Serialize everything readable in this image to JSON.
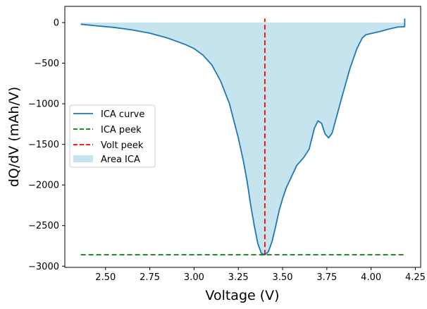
{
  "chart_data": {
    "type": "line",
    "xlabel": "Voltage (V)",
    "ylabel": "dQ/dV (mAh/V)",
    "xlim": [
      2.27,
      4.28
    ],
    "ylim": [
      -3015,
      200
    ],
    "x_ticks": [
      2.5,
      2.75,
      3.0,
      3.25,
      3.5,
      3.75,
      4.0,
      4.25
    ],
    "x_tick_labels": [
      "2.50",
      "2.75",
      "3.00",
      "3.25",
      "3.50",
      "3.75",
      "4.00",
      "4.25"
    ],
    "y_ticks": [
      0,
      -500,
      -1000,
      -1500,
      -2000,
      -2500,
      -3000
    ],
    "y_tick_labels": [
      "0",
      "−500",
      "−1000",
      "−1500",
      "−2000",
      "−2500",
      "−3000"
    ],
    "grid": false,
    "legend_position": "center-left",
    "series": [
      {
        "name": "ICA curve",
        "style": "solid",
        "color": "#1f77b4",
        "x": [
          2.36,
          2.45,
          2.55,
          2.65,
          2.75,
          2.85,
          2.95,
          3.0,
          3.05,
          3.1,
          3.15,
          3.2,
          3.25,
          3.28,
          3.3,
          3.32,
          3.34,
          3.36,
          3.38,
          3.4,
          3.42,
          3.44,
          3.46,
          3.48,
          3.5,
          3.52,
          3.55,
          3.58,
          3.62,
          3.65,
          3.68,
          3.7,
          3.72,
          3.74,
          3.76,
          3.78,
          3.8,
          3.84,
          3.88,
          3.92,
          3.95,
          3.97,
          4.05,
          4.1,
          4.15,
          4.19,
          4.19
        ],
        "y": [
          -20,
          -40,
          -60,
          -90,
          -130,
          -190,
          -270,
          -320,
          -400,
          -520,
          -720,
          -1000,
          -1420,
          -1720,
          -1960,
          -2250,
          -2500,
          -2720,
          -2840,
          -2860,
          -2820,
          -2700,
          -2520,
          -2320,
          -2170,
          -2040,
          -1900,
          -1760,
          -1660,
          -1560,
          -1300,
          -1210,
          -1240,
          -1370,
          -1420,
          -1360,
          -1200,
          -880,
          -570,
          -320,
          -190,
          -150,
          -110,
          -80,
          -55,
          -50,
          50
        ]
      },
      {
        "name": "ICA peek",
        "style": "dashed",
        "color": "#008000",
        "x": [
          2.36,
          4.19
        ],
        "y": [
          -2860,
          -2860
        ]
      },
      {
        "name": "Volt peek",
        "style": "dashed",
        "color": "#ff0000",
        "x": [
          3.4,
          3.4
        ],
        "y": [
          -2860,
          50
        ]
      }
    ],
    "fill": {
      "name": "Area ICA",
      "color": "#add8e6",
      "opacity": 0.7,
      "between": [
        "ICA curve",
        0
      ]
    }
  }
}
